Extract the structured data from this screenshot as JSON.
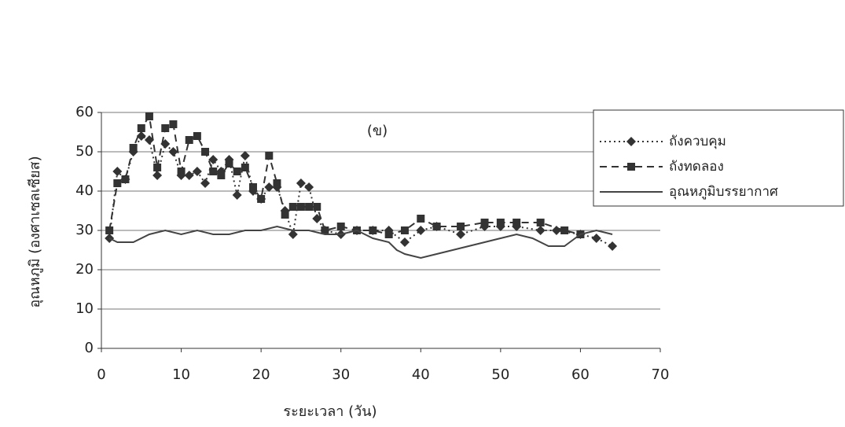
{
  "chart_data": {
    "type": "line",
    "title": "(ข)",
    "x_label": "ระยะเวลา (วัน)",
    "y_label": "อุณหภูมิ (องศาเซลเซียส)",
    "xlim": [
      0,
      70
    ],
    "xticks": [
      0,
      10,
      20,
      30,
      40,
      50,
      60,
      70
    ],
    "ylim": [
      0,
      60
    ],
    "yticks": [
      0,
      10,
      20,
      30,
      40,
      50,
      60
    ],
    "grid": true,
    "legend": "right",
    "series": [
      {
        "name": "ถังควบคุม",
        "color": "#333333",
        "marker": "diamond",
        "dash": "dotted",
        "x": [
          1,
          2,
          3,
          4,
          5,
          6,
          7,
          8,
          9,
          10,
          11,
          12,
          13,
          14,
          15,
          16,
          17,
          18,
          19,
          20,
          21,
          22,
          23,
          24,
          25,
          26,
          27,
          28,
          30,
          32,
          34,
          36,
          38,
          40,
          42,
          45,
          48,
          50,
          52,
          55,
          57,
          60,
          62,
          64
        ],
        "values": [
          28,
          45,
          43,
          50,
          54,
          53,
          44,
          52,
          50,
          44,
          44,
          45,
          42,
          48,
          45,
          48,
          39,
          49,
          40,
          38,
          41,
          41,
          35,
          29,
          42,
          41,
          33,
          30,
          29,
          30,
          30,
          30,
          27,
          30,
          31,
          29,
          31,
          31,
          31,
          30,
          30,
          29,
          28,
          26
        ]
      },
      {
        "name": "ถังทดลอง",
        "color": "#333333",
        "marker": "square",
        "dash": "dashed",
        "x": [
          1,
          2,
          3,
          4,
          5,
          6,
          7,
          8,
          9,
          10,
          11,
          12,
          13,
          14,
          15,
          16,
          17,
          18,
          19,
          20,
          21,
          22,
          23,
          24,
          25,
          26,
          27,
          28,
          30,
          32,
          34,
          36,
          38,
          40,
          42,
          45,
          48,
          50,
          52,
          55,
          58,
          60
        ],
        "values": [
          30,
          42,
          43,
          51,
          56,
          59,
          46,
          56,
          57,
          45,
          53,
          54,
          50,
          45,
          44,
          47,
          45,
          46,
          41,
          38,
          49,
          42,
          34,
          36,
          36,
          36,
          36,
          30,
          31,
          30,
          30,
          29,
          30,
          33,
          31,
          31,
          32,
          32,
          32,
          32,
          30,
          29
        ]
      },
      {
        "name": "อุณหภูมิบรรยากาศ",
        "color": "#444444",
        "marker": "none",
        "dash": "solid",
        "x": [
          1,
          2,
          4,
          6,
          8,
          10,
          12,
          14,
          16,
          18,
          20,
          22,
          24,
          26,
          28,
          30,
          32,
          34,
          36,
          37,
          38,
          40,
          42,
          44,
          46,
          48,
          50,
          52,
          54,
          56,
          58,
          60,
          62,
          64
        ],
        "values": [
          28,
          27,
          27,
          29,
          30,
          29,
          30,
          29,
          29,
          30,
          30,
          31,
          30,
          30,
          29,
          29,
          30,
          28,
          27,
          25,
          24,
          23,
          24,
          25,
          26,
          27,
          28,
          29,
          28,
          26,
          26,
          29,
          30,
          29
        ]
      }
    ]
  }
}
